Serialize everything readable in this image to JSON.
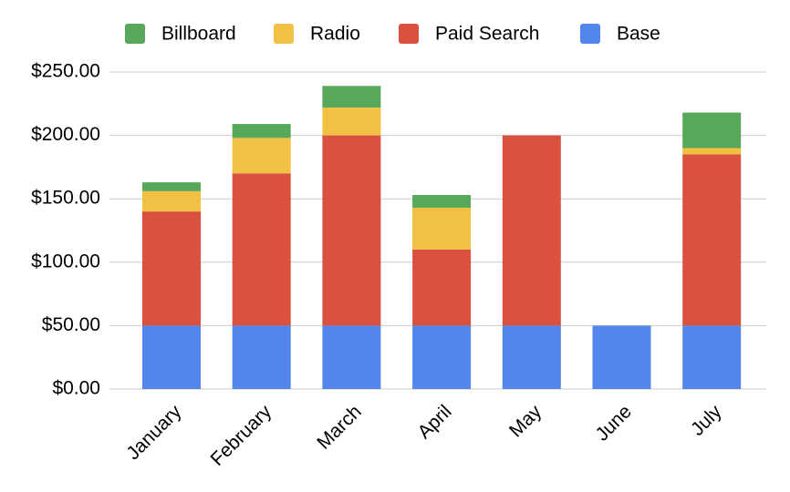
{
  "chart_data": {
    "type": "stacked_bar",
    "categories": [
      "January",
      "February",
      "March",
      "April",
      "May",
      "June",
      "July"
    ],
    "series": [
      {
        "name": "Billboard",
        "color": "#57a85a",
        "values": [
          7,
          11,
          17,
          10,
          0,
          0,
          28
        ]
      },
      {
        "name": "Radio",
        "color": "#f2c042",
        "values": [
          16,
          28,
          22,
          33,
          0,
          0,
          5
        ]
      },
      {
        "name": "Paid Search",
        "color": "#da5140",
        "values": [
          90,
          120,
          150,
          60,
          150,
          0,
          135
        ]
      },
      {
        "name": "Base",
        "color": "#5385ea",
        "values": [
          50,
          50,
          50,
          50,
          50,
          50,
          50
        ]
      }
    ],
    "ylim": [
      0,
      250
    ],
    "yticks": [
      {
        "value": 0,
        "label": "$0.00"
      },
      {
        "value": 50,
        "label": "$50.00"
      },
      {
        "value": 100,
        "label": "$100.00"
      },
      {
        "value": 150,
        "label": "$150.00"
      },
      {
        "value": 200,
        "label": "$200.00"
      },
      {
        "value": 250,
        "label": "$250.00"
      }
    ],
    "grid": true,
    "legend": "top"
  }
}
